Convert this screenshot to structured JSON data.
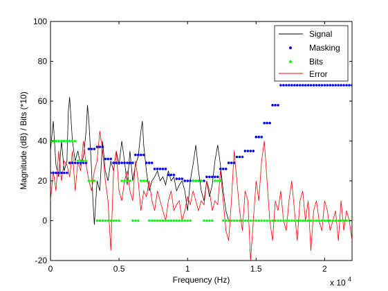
{
  "chart_data": {
    "type": "line",
    "xlabel": "Frequency (Hz)",
    "ylabel": "Magnitude (dB) / Bits (*10)",
    "x_exponent_label": "x 10",
    "x_exponent_power": "4",
    "xlim": [
      0,
      22000
    ],
    "ylim": [
      -20,
      100
    ],
    "x_ticks": [
      0,
      5000,
      10000,
      15000,
      20000
    ],
    "x_tick_labels": [
      "0",
      "0.5",
      "1",
      "1.5",
      "2"
    ],
    "y_ticks": [
      -20,
      0,
      20,
      40,
      60,
      80,
      100
    ],
    "y_tick_labels": [
      "-20",
      "0",
      "20",
      "40",
      "60",
      "80",
      "100"
    ],
    "grid": false,
    "legend_position": "top-right",
    "legend": [
      "Signal",
      "Masking",
      "Bits",
      "Error"
    ],
    "colors": {
      "Signal": "#000000",
      "Masking": "#0000ff",
      "Bits": "#00ff00",
      "Error": "#ff0000"
    },
    "series": [
      {
        "name": "Signal",
        "style": "line",
        "x": [
          0,
          200,
          400,
          600,
          800,
          1000,
          1200,
          1300,
          1400,
          1600,
          1800,
          2000,
          2200,
          2400,
          2600,
          2700,
          2800,
          3000,
          3100,
          3200,
          3400,
          3600,
          3800,
          4000,
          4200,
          4400,
          4600,
          4800,
          5000,
          5200,
          5400,
          5600,
          5800,
          6000,
          6200,
          6400,
          6600,
          6700,
          6800,
          7000,
          7200,
          7400,
          7600,
          7800,
          8000,
          8200,
          8400,
          8600,
          8800,
          9000,
          9200,
          9400,
          9600,
          9800,
          10000,
          10200,
          10400,
          10600,
          10800,
          11000,
          11200,
          11400,
          11600,
          11800,
          12000,
          12200,
          12400,
          12600,
          12800,
          13000
        ],
        "y": [
          35,
          50,
          28,
          22,
          40,
          25,
          30,
          55,
          62,
          40,
          30,
          35,
          28,
          32,
          45,
          58,
          50,
          25,
          10,
          -2,
          20,
          15,
          40,
          25,
          20,
          30,
          25,
          35,
          28,
          40,
          30,
          18,
          35,
          20,
          28,
          32,
          45,
          50,
          38,
          25,
          15,
          20,
          22,
          25,
          20,
          22,
          18,
          25,
          20,
          22,
          15,
          18,
          20,
          15,
          5,
          20,
          28,
          38,
          25,
          15,
          10,
          20,
          12,
          18,
          30,
          38,
          28,
          15,
          5,
          0
        ]
      },
      {
        "name": "Masking",
        "style": "points",
        "x": [
          0,
          200,
          400,
          600,
          800,
          1000,
          1200,
          1400,
          1600,
          1800,
          2000,
          2200,
          2400,
          2600,
          2800,
          3000,
          3200,
          3400,
          3600,
          3800,
          4000,
          4200,
          4400,
          4600,
          4800,
          5000,
          5200,
          5400,
          5600,
          5800,
          6000,
          6200,
          6400,
          6600,
          6800,
          7000,
          7200,
          7400,
          7600,
          7800,
          8000,
          8200,
          8400,
          8600,
          8800,
          9000,
          9200,
          9400,
          9600,
          9800,
          10000,
          10200,
          10400,
          10600,
          10800,
          11000,
          11200,
          11400,
          11600,
          11800,
          12000,
          12200,
          12400,
          12600,
          12800,
          13000,
          13200,
          13400,
          13600,
          13800,
          14000,
          14200,
          14400,
          14600,
          14800,
          15000,
          15200,
          15400,
          15600,
          15800,
          16000,
          16200,
          16400,
          16600,
          16800,
          17000,
          17200,
          17400,
          17600,
          17800,
          18000,
          18200,
          18400,
          18600,
          18800,
          19000,
          19200,
          19400,
          19600,
          19800,
          20000,
          20200,
          20400,
          20600,
          20800,
          21000,
          21200,
          21400,
          21600,
          21800,
          22000
        ],
        "y": [
          24,
          24,
          24,
          24,
          24,
          24,
          24,
          29,
          29,
          29,
          29,
          29,
          29,
          29,
          36,
          36,
          36,
          37,
          37,
          37,
          31,
          31,
          31,
          29,
          29,
          29,
          29,
          29,
          29,
          29,
          29,
          33,
          33,
          33,
          33,
          29,
          29,
          29,
          26,
          26,
          26,
          26,
          26,
          23,
          23,
          23,
          21,
          21,
          21,
          20,
          20,
          20,
          20,
          20,
          20,
          20,
          20,
          22,
          22,
          22,
          22,
          22,
          26,
          26,
          26,
          29,
          29,
          29,
          32,
          32,
          32,
          35,
          35,
          35,
          35,
          42,
          42,
          42,
          49,
          49,
          49,
          58,
          58,
          58,
          68,
          68,
          68,
          68,
          68,
          68,
          68,
          68,
          68,
          68,
          68,
          68,
          68,
          68,
          68,
          68,
          68,
          68,
          68,
          68,
          68,
          68,
          68,
          68,
          68,
          68,
          68
        ]
      },
      {
        "name": "Bits",
        "style": "points",
        "x": [
          0,
          200,
          400,
          600,
          800,
          1000,
          1200,
          1400,
          1600,
          1800,
          2000,
          2200,
          2400,
          2600,
          2800,
          3000,
          3200,
          3400,
          3600,
          3800,
          4000,
          4200,
          4400,
          4600,
          4800,
          5000,
          5200,
          5400,
          5600,
          5800,
          6000,
          6200,
          6400,
          6600,
          6800,
          7000,
          7200,
          7400,
          7600,
          7800,
          8000,
          8200,
          8400,
          8600,
          8800,
          9000,
          9200,
          9400,
          9600,
          9800,
          10000,
          10200,
          10400,
          10600,
          10800,
          11000,
          11200,
          11400,
          11600,
          11800,
          12000,
          12200,
          12400,
          12600,
          12800,
          13000,
          13200,
          13400,
          13600,
          13800,
          14000,
          14200,
          14400,
          14600,
          14800,
          15000,
          15200,
          15400,
          15600,
          15800,
          16000,
          16200,
          16400,
          16600,
          16800,
          17000,
          17200,
          17400,
          17600,
          17800,
          18000,
          18200,
          18400,
          18600,
          18800,
          19000,
          19200,
          19400,
          19600,
          19800,
          20000,
          20200,
          20400,
          20600,
          20800,
          21000,
          21200,
          21400,
          21600,
          21800,
          22000
        ],
        "y": [
          40,
          40,
          40,
          40,
          40,
          40,
          40,
          40,
          40,
          40,
          30,
          30,
          30,
          30,
          20,
          20,
          20,
          0,
          0,
          0,
          0,
          0,
          0,
          0,
          0,
          0,
          20,
          20,
          20,
          20,
          0,
          0,
          0,
          20,
          20,
          20,
          0,
          0,
          0,
          0,
          0,
          0,
          0,
          0,
          0,
          0,
          0,
          0,
          0,
          0,
          0,
          0,
          20,
          20,
          20,
          20,
          0,
          0,
          0,
          0,
          20,
          20,
          20,
          0,
          0,
          0,
          0,
          0,
          0,
          0,
          0,
          0,
          0,
          0,
          0,
          0,
          0,
          0,
          0,
          0,
          0,
          0,
          0,
          0,
          0,
          0,
          0,
          0,
          0,
          0,
          0,
          0,
          0,
          0,
          0,
          0,
          0,
          0,
          0,
          0,
          0,
          0,
          0,
          0,
          0,
          0,
          0,
          0,
          0,
          0,
          0
        ]
      },
      {
        "name": "Error",
        "style": "line",
        "x": [
          0,
          200,
          400,
          600,
          800,
          1000,
          1200,
          1400,
          1600,
          1800,
          2000,
          2200,
          2400,
          2600,
          2800,
          3000,
          3200,
          3400,
          3600,
          3800,
          4000,
          4200,
          4400,
          4600,
          4800,
          5000,
          5200,
          5400,
          5600,
          5800,
          6000,
          6200,
          6400,
          6600,
          6800,
          7000,
          7200,
          7400,
          7600,
          7800,
          8000,
          8200,
          8400,
          8600,
          8800,
          9000,
          9200,
          9400,
          9600,
          9800,
          10000,
          10200,
          10400,
          10600,
          10800,
          11000,
          11200,
          11400,
          11600,
          11800,
          12000,
          12200,
          12400,
          12600,
          12800,
          13000,
          13200,
          13400,
          13600,
          13800,
          14000,
          14200,
          14400,
          14600,
          14800,
          15000,
          15200,
          15400,
          15600,
          15800,
          16000,
          16200,
          16400,
          16600,
          16800,
          17000,
          17200,
          17400,
          17600,
          17800,
          18000,
          18200,
          18400,
          18600,
          18800,
          19000,
          19200,
          19400,
          19600,
          19800,
          20000,
          20200,
          20400,
          20600,
          20800,
          21000,
          21200,
          21400,
          21600,
          21800,
          22000
        ],
        "y": [
          10,
          25,
          15,
          35,
          20,
          30,
          28,
          22,
          35,
          15,
          30,
          25,
          40,
          28,
          20,
          15,
          25,
          30,
          45,
          35,
          20,
          10,
          -15,
          25,
          35,
          15,
          10,
          20,
          25,
          15,
          10,
          30,
          20,
          5,
          15,
          12,
          20,
          10,
          5,
          15,
          10,
          5,
          0,
          10,
          15,
          5,
          8,
          10,
          0,
          5,
          12,
          8,
          15,
          10,
          5,
          10,
          8,
          20,
          15,
          5,
          10,
          8,
          25,
          10,
          -5,
          -10,
          10,
          35,
          20,
          5,
          -5,
          15,
          10,
          -20,
          0,
          20,
          10,
          30,
          40,
          20,
          0,
          -10,
          10,
          5,
          15,
          0,
          -5,
          10,
          20,
          5,
          -10,
          10,
          15,
          0,
          10,
          -15,
          5,
          10,
          0,
          -5,
          10,
          5,
          -5,
          0,
          5,
          -10,
          10,
          -5,
          5,
          0,
          -10
        ]
      }
    ]
  }
}
